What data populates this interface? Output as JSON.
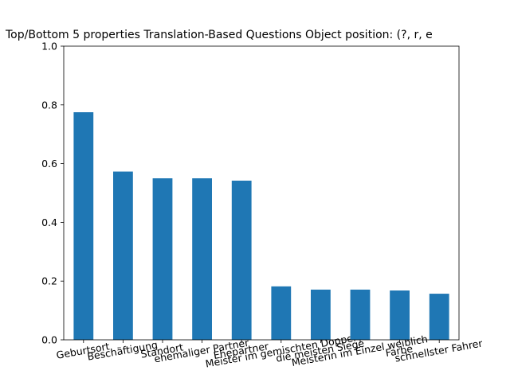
{
  "chart_data": {
    "type": "bar",
    "title": "Top/Bottom 5 properties Translation-Based Questions Object position: (?, r, e",
    "categories": [
      "Geburtsort",
      "Beschäftigung",
      "Standort",
      "ehemaliger Partner",
      "Ehepartner",
      "Meister im gemischten Doppel",
      "die meisten Siege",
      "Meisterin im Einzel weiblich",
      "Farbe",
      "schnellster Fahrer"
    ],
    "values": [
      0.775,
      0.573,
      0.55,
      0.55,
      0.542,
      0.182,
      0.171,
      0.171,
      0.168,
      0.157
    ],
    "color": "#1f77b4",
    "ylim": [
      0,
      1
    ],
    "yticks": [
      {
        "value": 0,
        "label": "0.0"
      },
      {
        "value": 0.2,
        "label": "0.2"
      },
      {
        "value": 0.4,
        "label": "0.4"
      },
      {
        "value": 0.6,
        "label": "0.6"
      },
      {
        "value": 0.8,
        "label": "0.8"
      },
      {
        "value": 1,
        "label": "1.0"
      }
    ],
    "grid": false
  }
}
